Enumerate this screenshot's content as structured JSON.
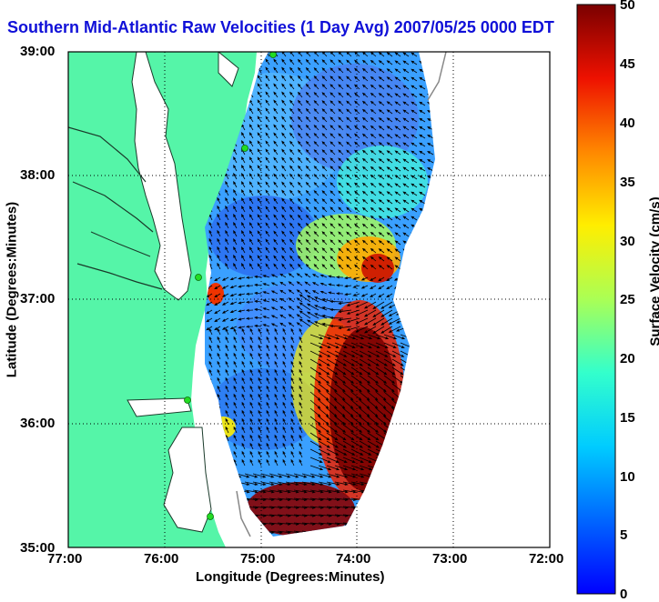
{
  "title": "Southern Mid-Atlantic Raw Velocities (1 Day Avg) 2007/05/25 0000 EDT",
  "x_axis": {
    "label": "Longitude (Degrees:Minutes)",
    "ticks": [
      "77:00",
      "76:00",
      "75:00",
      "74:00",
      "73:00",
      "72:00"
    ]
  },
  "y_axis": {
    "label": "Latitude (Degrees:Minutes)",
    "ticks": [
      "39:00",
      "38:00",
      "37:00",
      "36:00",
      "35:00"
    ]
  },
  "colorbar": {
    "label": "Surface Velocity (cm/s)",
    "ticks": [
      "50",
      "45",
      "40",
      "35",
      "30",
      "25",
      "20",
      "15",
      "10",
      "5",
      "0"
    ],
    "range": [
      0,
      50
    ],
    "colormap": "jet"
  },
  "colors": {
    "land": "#55f5a8",
    "title": "#1010d8",
    "station": "#22dd22"
  },
  "map": {
    "lon_range": [
      -77,
      -72
    ],
    "lat_range": [
      35,
      39
    ],
    "grid": "dotted",
    "stations": 5
  }
}
